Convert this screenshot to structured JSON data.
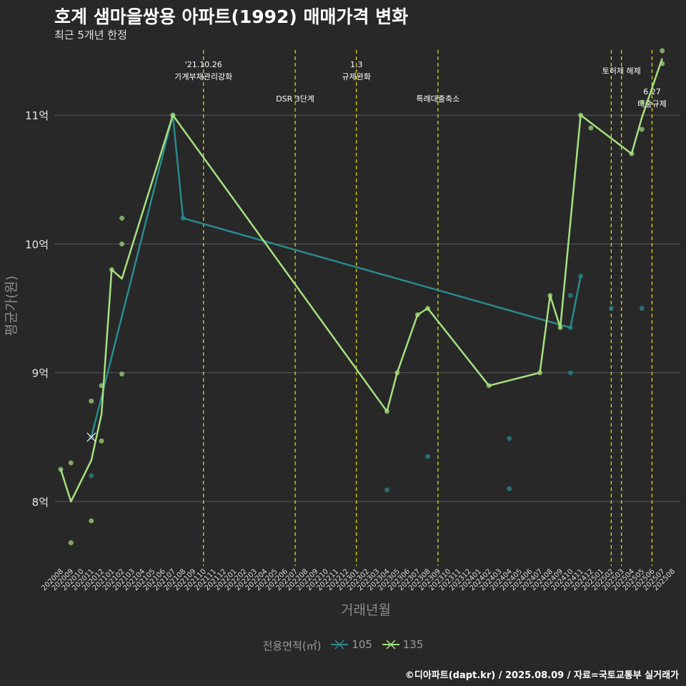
{
  "title": "호계 샘마을쌍용 아파트(1992) 매매가격 변화",
  "subtitle": "최근 5개년 한정",
  "caption": "©디아파트(dapt.kr) / 2025.08.09 / 자료=국토교통부 실거래가",
  "chart_data": {
    "type": "line",
    "xlabel": "거래년월",
    "ylabel": "평균가(원)",
    "legend_title": "전용면적(㎡)",
    "ylim": [
      7.5,
      11.55
    ],
    "y_ticks": [
      {
        "value": 8,
        "label": "8억"
      },
      {
        "value": 9,
        "label": "9억"
      },
      {
        "value": 10,
        "label": "10억"
      },
      {
        "value": 11,
        "label": "11억"
      }
    ],
    "categories": [
      "202008",
      "202009",
      "202010",
      "202011",
      "202012",
      "202101",
      "202102",
      "202103",
      "202104",
      "202105",
      "202106",
      "202107",
      "202108",
      "202109",
      "202110",
      "202111",
      "202112",
      "202201",
      "202202",
      "202203",
      "202204",
      "202205",
      "202206",
      "202207",
      "202208",
      "202209",
      "202210",
      "202211",
      "202212",
      "202301",
      "202302",
      "202303",
      "202304",
      "202305",
      "202306",
      "202307",
      "202308",
      "202309",
      "202310",
      "202311",
      "202312",
      "202401",
      "202402",
      "202403",
      "202404",
      "202405",
      "202406",
      "202407",
      "202408",
      "202409",
      "202410",
      "202411",
      "202412",
      "202501",
      "202502",
      "202503",
      "202504",
      "202505",
      "202506",
      "202507",
      "202508"
    ],
    "series": [
      {
        "name": "105",
        "color": "#2a8a8e",
        "line": [
          [
            "202011",
            8.5
          ],
          [
            "202107",
            11.0
          ],
          [
            "202108",
            10.2
          ],
          [
            "202410",
            9.35
          ],
          [
            "202411",
            9.75
          ]
        ],
        "points": [
          [
            "202011",
            8.2
          ],
          [
            "202011",
            8.5
          ],
          [
            "202107",
            11.0
          ],
          [
            "202108",
            10.2
          ],
          [
            "202304",
            8.09
          ],
          [
            "202308",
            8.35
          ],
          [
            "202404",
            8.49
          ],
          [
            "202404",
            8.1
          ],
          [
            "202410",
            9.6
          ],
          [
            "202410",
            9.35
          ],
          [
            "202410",
            9.0
          ],
          [
            "202411",
            9.75
          ],
          [
            "202502",
            9.5
          ],
          [
            "202505",
            9.5
          ]
        ]
      },
      {
        "name": "135",
        "color": "#a6e07f",
        "line": [
          [
            "202008",
            8.25
          ],
          [
            "202009",
            8.0
          ],
          [
            "202011",
            8.32
          ],
          [
            "202012",
            8.68
          ],
          [
            "202101",
            9.8
          ],
          [
            "202102",
            9.73
          ],
          [
            "202107",
            11.0
          ],
          [
            "202304",
            8.7
          ],
          [
            "202305",
            9.0
          ],
          [
            "202307",
            9.45
          ],
          [
            "202308",
            9.5
          ],
          [
            "202402",
            8.9
          ],
          [
            "202407",
            9.0
          ],
          [
            "202408",
            9.6
          ],
          [
            "202409",
            9.35
          ],
          [
            "202411",
            11.0
          ],
          [
            "202504",
            10.7
          ],
          [
            "202505",
            10.98
          ],
          [
            "202507",
            11.44
          ]
        ],
        "points": [
          [
            "202008",
            8.25
          ],
          [
            "202009",
            8.3
          ],
          [
            "202009",
            7.68
          ],
          [
            "202011",
            8.78
          ],
          [
            "202011",
            7.85
          ],
          [
            "202012",
            8.9
          ],
          [
            "202012",
            8.47
          ],
          [
            "202101",
            9.8
          ],
          [
            "202102",
            10.2
          ],
          [
            "202102",
            10.0
          ],
          [
            "202102",
            8.99
          ],
          [
            "202107",
            11.0
          ],
          [
            "202304",
            8.7
          ],
          [
            "202305",
            9.0
          ],
          [
            "202307",
            9.45
          ],
          [
            "202308",
            9.5
          ],
          [
            "202402",
            8.9
          ],
          [
            "202407",
            9.0
          ],
          [
            "202408",
            9.6
          ],
          [
            "202409",
            9.35
          ],
          [
            "202411",
            11.0
          ],
          [
            "202412",
            10.9
          ],
          [
            "202504",
            10.7
          ],
          [
            "202505",
            11.1
          ],
          [
            "202505",
            10.89
          ],
          [
            "202507",
            11.5
          ],
          [
            "202507",
            11.4
          ]
        ]
      }
    ],
    "cross_marker": {
      "series": "105",
      "x": "202011",
      "y": 8.5
    },
    "events": [
      {
        "x": "202110",
        "lines": [
          "'21.10.26",
          "가계부채관리강화"
        ],
        "row": 1
      },
      {
        "x": "202207",
        "lines": [
          "DSR 3단계"
        ],
        "row": 2
      },
      {
        "x": "202301",
        "lines": [
          "1.3",
          "규제완화"
        ],
        "row": 1
      },
      {
        "x": "202309",
        "lines": [
          "특례대출축소"
        ],
        "row": 2
      },
      {
        "x": "202502",
        "lines": [],
        "row": 0
      },
      {
        "x": "202503",
        "lines": [
          "토허제 해제"
        ],
        "row": 1
      },
      {
        "x": "202506",
        "lines": [
          "6.27",
          "대출규제"
        ],
        "row": 3
      }
    ]
  }
}
